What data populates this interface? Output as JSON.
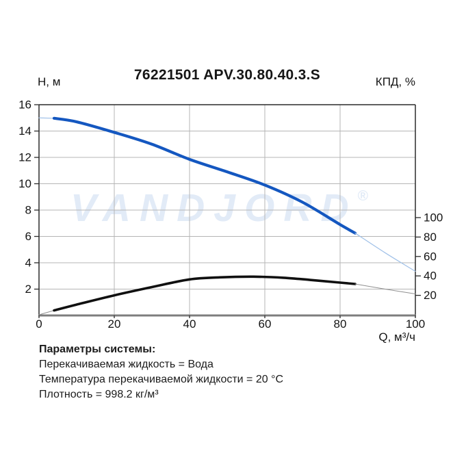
{
  "header": {
    "title": "76221501 APV.30.80.40.3.S",
    "left_axis_title": "Н, м",
    "right_axis_title": "КПД, %"
  },
  "chart_data": {
    "type": "line",
    "title": "76221501 APV.30.80.40.3.S",
    "x_axis": {
      "label": "Q, м³/ч",
      "min": 0,
      "max": 100,
      "ticks": [
        0,
        20,
        40,
        60,
        80,
        100
      ],
      "grid": true
    },
    "y_axis_left": {
      "label": "Н, м",
      "min": 0,
      "max": 16,
      "ticks": [
        2,
        4,
        6,
        8,
        10,
        12,
        14,
        16
      ],
      "grid": true
    },
    "y_axis_right": {
      "label": "КПД, %",
      "ticks": [
        20,
        40,
        60,
        80,
        100
      ]
    },
    "legend": "none",
    "series": [
      {
        "name": "head-curve-lead",
        "axis": "left",
        "color": "#9fc0e8",
        "width": 1.2,
        "points": [
          [
            0,
            15.0
          ],
          [
            4,
            14.97
          ]
        ]
      },
      {
        "name": "head-curve",
        "axis": "left",
        "color": "#1457c0",
        "width": 4.2,
        "points": [
          [
            4,
            14.97
          ],
          [
            10,
            14.7
          ],
          [
            20,
            13.9
          ],
          [
            30,
            13.0
          ],
          [
            40,
            11.85
          ],
          [
            50,
            10.9
          ],
          [
            60,
            9.9
          ],
          [
            70,
            8.6
          ],
          [
            80,
            6.9
          ],
          [
            84,
            6.25
          ]
        ]
      },
      {
        "name": "head-curve-extension",
        "axis": "left",
        "color": "#9fc0e8",
        "width": 1.2,
        "points": [
          [
            84,
            6.25
          ],
          [
            92,
            4.75
          ],
          [
            100,
            3.35
          ]
        ]
      },
      {
        "name": "efficiency-curve-lead",
        "axis": "right",
        "color": "#8f8f8f",
        "width": 1,
        "points": [
          [
            0,
            0
          ],
          [
            4,
            4.5
          ]
        ]
      },
      {
        "name": "efficiency-curve",
        "axis": "right",
        "color": "#101010",
        "width": 3.6,
        "points": [
          [
            4,
            4.5
          ],
          [
            10,
            10.5
          ],
          [
            20,
            20.0
          ],
          [
            30,
            28.5
          ],
          [
            40,
            36.4
          ],
          [
            48,
            38.5
          ],
          [
            57,
            39.2
          ],
          [
            65,
            38.1
          ],
          [
            72,
            35.9
          ],
          [
            80,
            33.1
          ],
          [
            84,
            31.7
          ]
        ]
      },
      {
        "name": "efficiency-curve-extension",
        "axis": "right",
        "color": "#8f8f8f",
        "width": 1,
        "points": [
          [
            84,
            31.7
          ],
          [
            92,
            26.4
          ],
          [
            100,
            21.5
          ]
        ]
      }
    ],
    "colors": {
      "grid": "#b5b5b5",
      "frame": "#2a2a2a",
      "bottom_axis": "#7d7d7d",
      "tick_text": "#141414"
    },
    "watermark": {
      "text": "VANDJORD",
      "reg": "®",
      "color": "#e2ebf7"
    }
  },
  "footer": {
    "heading": "Параметры системы:",
    "lines": [
      "Перекачиваемая жидкость = Вода",
      "Температура перекачиваемой жидкости = 20 °C",
      "Плотность = 998.2 кг/м³"
    ]
  }
}
